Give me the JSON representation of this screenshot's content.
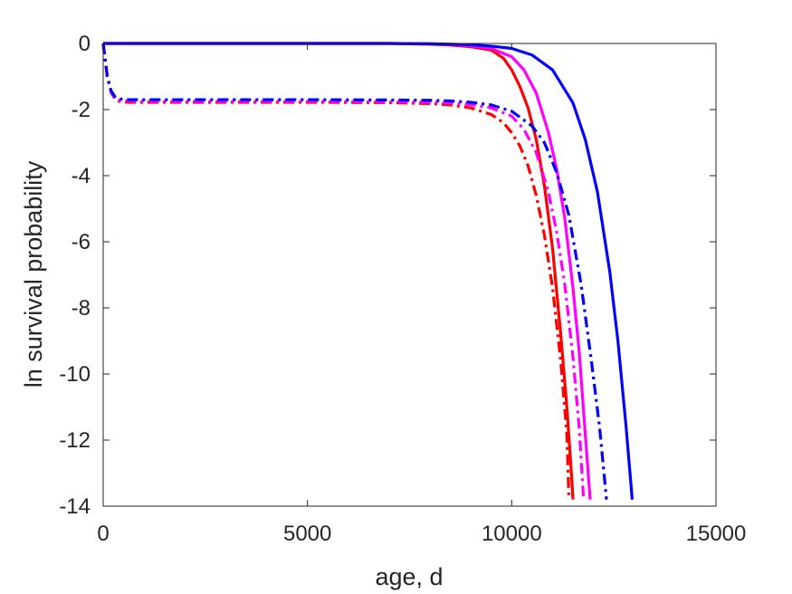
{
  "chart_data": {
    "type": "line",
    "title": "",
    "xlabel": "age, d",
    "ylabel": "ln survival probability",
    "xlim": [
      0,
      15000
    ],
    "ylim": [
      -14,
      0
    ],
    "xticks": [
      0,
      5000,
      10000,
      15000
    ],
    "yticks": [
      -14,
      -12,
      -10,
      -8,
      -6,
      -4,
      -2,
      0
    ],
    "xtick_labels": [
      "0",
      "5000",
      "10000",
      "15000"
    ],
    "ytick_labels": [
      "-14",
      "-12",
      "-10",
      "-8",
      "-6",
      "-4",
      "-2",
      "0"
    ],
    "grid": false,
    "legend": "none",
    "series": [
      {
        "color": "#ff0000",
        "style": "solid",
        "x": [
          0,
          2000,
          4000,
          6000,
          7000,
          8000,
          8500,
          9000,
          9500,
          9800,
          10000,
          10200,
          10400,
          10600,
          10800,
          11000,
          11200,
          11350,
          11450,
          11500
        ],
        "y": [
          0,
          0,
          0,
          0,
          0,
          -0.02,
          -0.05,
          -0.1,
          -0.2,
          -0.45,
          -0.8,
          -1.3,
          -1.95,
          -2.9,
          -4.3,
          -6.2,
          -8.8,
          -11.0,
          -12.8,
          -13.8
        ]
      },
      {
        "color": "#ff00ff",
        "style": "solid",
        "x": [
          0,
          2000,
          4000,
          6000,
          7000,
          8000,
          8500,
          9000,
          9500,
          10000,
          10300,
          10600,
          10900,
          11100,
          11300,
          11500,
          11650,
          11800,
          11920
        ],
        "y": [
          0,
          0,
          0,
          0,
          0,
          -0.01,
          -0.03,
          -0.07,
          -0.15,
          -0.4,
          -0.8,
          -1.5,
          -2.7,
          -3.8,
          -5.3,
          -7.4,
          -9.3,
          -11.8,
          -13.8
        ]
      },
      {
        "color": "#0000ff",
        "style": "solid",
        "x": [
          0,
          2000,
          4000,
          6000,
          7000,
          8000,
          8500,
          9000,
          9500,
          10000,
          10500,
          11000,
          11500,
          11800,
          12100,
          12400,
          12600,
          12800,
          12950
        ],
        "y": [
          0,
          0,
          0,
          0,
          0,
          -0.01,
          -0.02,
          -0.04,
          -0.08,
          -0.15,
          -0.35,
          -0.8,
          -1.8,
          -2.9,
          -4.5,
          -6.9,
          -9.0,
          -11.6,
          -13.8
        ]
      },
      {
        "color": "#ff0000",
        "style": "dashdot",
        "x": [
          0,
          50,
          100,
          200,
          300,
          400,
          600,
          1000,
          3000,
          5000,
          7000,
          8000,
          8500,
          9000,
          9500,
          9800,
          10000,
          10200,
          10400,
          10600,
          10800,
          11000,
          11200,
          11350,
          11400
        ],
        "y": [
          0,
          -0.5,
          -1.0,
          -1.5,
          -1.7,
          -1.75,
          -1.78,
          -1.78,
          -1.78,
          -1.78,
          -1.79,
          -1.82,
          -1.86,
          -1.95,
          -2.15,
          -2.4,
          -2.7,
          -3.1,
          -3.7,
          -4.6,
          -5.8,
          -7.4,
          -9.6,
          -11.8,
          -13.8
        ]
      },
      {
        "color": "#ff00ff",
        "style": "dashdot",
        "x": [
          0,
          50,
          100,
          200,
          300,
          400,
          600,
          1000,
          3000,
          5000,
          7000,
          8000,
          8500,
          9000,
          9500,
          10000,
          10300,
          10600,
          10900,
          11100,
          11300,
          11500,
          11650,
          11760
        ],
        "y": [
          0,
          -0.5,
          -1.0,
          -1.5,
          -1.68,
          -1.72,
          -1.74,
          -1.75,
          -1.75,
          -1.75,
          -1.76,
          -1.78,
          -1.8,
          -1.85,
          -1.95,
          -2.2,
          -2.6,
          -3.3,
          -4.5,
          -5.7,
          -7.3,
          -9.5,
          -11.6,
          -13.8
        ]
      },
      {
        "color": "#0000ff",
        "style": "dashdot",
        "x": [
          0,
          50,
          100,
          200,
          300,
          400,
          600,
          1000,
          3000,
          5000,
          7000,
          8000,
          8500,
          9000,
          9500,
          10000,
          10500,
          10800,
          11100,
          11400,
          11700,
          11950,
          12150,
          12320
        ],
        "y": [
          0,
          -0.5,
          -1.0,
          -1.45,
          -1.63,
          -1.68,
          -1.7,
          -1.7,
          -1.7,
          -1.7,
          -1.71,
          -1.72,
          -1.74,
          -1.78,
          -1.86,
          -2.05,
          -2.5,
          -3.0,
          -3.9,
          -5.2,
          -7.3,
          -9.6,
          -11.6,
          -13.8
        ]
      }
    ]
  }
}
